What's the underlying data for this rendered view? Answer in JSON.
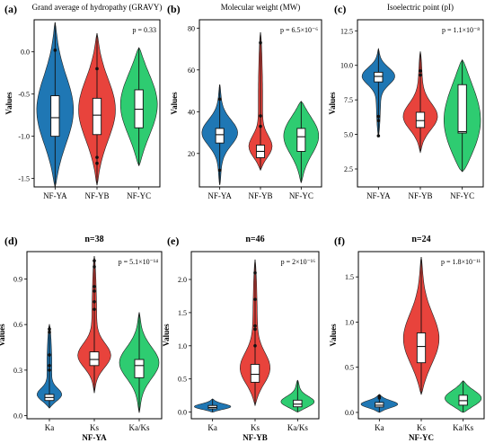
{
  "chart_data": [
    {
      "panel_label": "(a)",
      "type": "violin",
      "title": "Grand average of hydropathy (GRAVY)",
      "p_text": "p = 0.33",
      "ylabel": "Values",
      "xlabel": "",
      "categories": [
        "NF-YA",
        "NF-YB",
        "NF-YC"
      ],
      "ylim": [
        -1.6,
        0.38
      ],
      "yticks": [
        0.0,
        -0.5,
        -1.0,
        -1.5
      ],
      "ytick_labels": [
        "0.0",
        "-0.5",
        "-1.0",
        "-1.5"
      ],
      "colors": [
        "#1f77b4",
        "#e8433c",
        "#2ecc71"
      ],
      "violins": [
        {
          "min": -1.6,
          "max": 0.35,
          "q1": -1.0,
          "median": -0.78,
          "q3": -0.52,
          "points": [
            0.02
          ]
        },
        {
          "min": -1.58,
          "max": 0.22,
          "q1": -0.98,
          "median": -0.75,
          "q3": -0.55,
          "points": [
            -0.2,
            -1.25,
            -1.32
          ]
        },
        {
          "min": -1.35,
          "max": 0.05,
          "q1": -0.9,
          "median": -0.68,
          "q3": -0.45,
          "points": []
        }
      ]
    },
    {
      "panel_label": "(b)",
      "type": "violin",
      "title": "Molecular weight (MW)",
      "p_text": "p = 6.5×10⁻⁶",
      "ylabel": "Values",
      "xlabel": "",
      "categories": [
        "NF-YA",
        "NF-YB",
        "NF-YC"
      ],
      "ylim": [
        4,
        84
      ],
      "yticks": [
        20,
        40,
        60,
        80
      ],
      "ytick_labels": [
        "20",
        "40",
        "60",
        "80"
      ],
      "colors": [
        "#1f77b4",
        "#e8433c",
        "#2ecc71"
      ],
      "violins": [
        {
          "min": 5,
          "max": 53,
          "q1": 25,
          "median": 29,
          "q3": 32,
          "points": [
            46,
            12
          ]
        },
        {
          "min": 12,
          "max": 78,
          "q1": 18,
          "median": 21,
          "q3": 24,
          "points": [
            73,
            38,
            33
          ]
        },
        {
          "min": 6,
          "max": 45,
          "q1": 21,
          "median": 28,
          "q3": 32,
          "points": []
        }
      ]
    },
    {
      "panel_label": "(c)",
      "type": "violin",
      "title": "Isoelectric point (pI)",
      "p_text": "p = 1.1×10⁻⁸",
      "ylabel": "Values",
      "xlabel": "",
      "categories": [
        "NF-YA",
        "NF-YB",
        "NF-YC"
      ],
      "ylim": [
        1.2,
        13.3
      ],
      "yticks": [
        2.5,
        5.0,
        7.5,
        10.0,
        12.5
      ],
      "ytick_labels": [
        "2.5",
        "5.0",
        "7.5",
        "10.0",
        "12.5"
      ],
      "colors": [
        "#1f77b4",
        "#e8433c",
        "#2ecc71"
      ],
      "violins": [
        {
          "min": 4.9,
          "max": 11.2,
          "q1": 8.8,
          "median": 9.2,
          "q3": 9.5,
          "points": [
            6.3,
            6.0,
            4.9
          ]
        },
        {
          "min": 3.7,
          "max": 11.0,
          "q1": 5.5,
          "median": 6.0,
          "q3": 6.6,
          "points": [
            9.6,
            9.3
          ]
        },
        {
          "min": 2.3,
          "max": 10.4,
          "q1": 5.1,
          "median": 5.2,
          "q3": 8.6,
          "points": []
        }
      ]
    },
    {
      "panel_label": "(d)",
      "type": "violin",
      "title": "n=38",
      "p_text": "p = 5.1×10⁻¹⁴",
      "ylabel": "Values",
      "xlabel": "NF-YA",
      "categories": [
        "Ka",
        "Ks",
        "Ka/Ks"
      ],
      "ylim": [
        -0.02,
        1.08
      ],
      "yticks": [
        0.0,
        0.3,
        0.6,
        0.9
      ],
      "ytick_labels": [
        "0.0",
        "0.3",
        "0.6",
        "0.9"
      ],
      "colors": [
        "#1f77b4",
        "#e8433c",
        "#2ecc71"
      ],
      "violins": [
        {
          "min": 0.05,
          "max": 0.6,
          "q1": 0.1,
          "median": 0.12,
          "q3": 0.14,
          "points": [
            0.57,
            0.55,
            0.4,
            0.33,
            0.3
          ]
        },
        {
          "min": 0.15,
          "max": 1.05,
          "q1": 0.33,
          "median": 0.37,
          "q3": 0.42,
          "points": [
            1.02,
            0.98,
            0.85,
            0.82,
            0.75,
            0.7
          ]
        },
        {
          "min": 0.02,
          "max": 0.68,
          "q1": 0.25,
          "median": 0.33,
          "q3": 0.37,
          "points": []
        }
      ]
    },
    {
      "panel_label": "(e)",
      "type": "violin",
      "title": "n=46",
      "p_text": "p = 2×10⁻¹⁶",
      "ylabel": "Values",
      "xlabel": "NF-YB",
      "categories": [
        "Ka",
        "Ks",
        "Ka/Ks"
      ],
      "ylim": [
        -0.1,
        2.42
      ],
      "yticks": [
        0.0,
        0.5,
        1.0,
        1.5,
        2.0
      ],
      "ytick_labels": [
        "0.0",
        "0.5",
        "1.0",
        "1.5",
        "2.0"
      ],
      "colors": [
        "#1f77b4",
        "#e8433c",
        "#2ecc71"
      ],
      "violins": [
        {
          "min": 0.0,
          "max": 0.2,
          "q1": 0.05,
          "median": 0.07,
          "q3": 0.1,
          "points": []
        },
        {
          "min": 0.1,
          "max": 2.3,
          "q1": 0.45,
          "median": 0.57,
          "q3": 0.72,
          "points": [
            2.1,
            1.7,
            1.3,
            1.25,
            1.0
          ]
        },
        {
          "min": 0.0,
          "max": 0.48,
          "q1": 0.08,
          "median": 0.12,
          "q3": 0.18,
          "points": []
        }
      ]
    },
    {
      "panel_label": "(f)",
      "type": "violin",
      "title": "n=24",
      "p_text": "p = 1.8×10⁻¹¹",
      "ylabel": "Values",
      "xlabel": "NF-YC",
      "categories": [
        "Ka",
        "Ks",
        "Ka/Ks"
      ],
      "ylim": [
        -0.07,
        1.78
      ],
      "yticks": [
        0.0,
        0.5,
        1.0,
        1.5
      ],
      "ytick_labels": [
        "0.0",
        "0.5",
        "1.0",
        "1.5"
      ],
      "colors": [
        "#1f77b4",
        "#e8433c",
        "#2ecc71"
      ],
      "violins": [
        {
          "min": 0.0,
          "max": 0.2,
          "q1": 0.06,
          "median": 0.08,
          "q3": 0.11,
          "points": [
            0.18,
            0.16
          ]
        },
        {
          "min": 0.2,
          "max": 1.72,
          "q1": 0.55,
          "median": 0.73,
          "q3": 0.88,
          "points": []
        },
        {
          "min": 0.0,
          "max": 0.35,
          "q1": 0.08,
          "median": 0.13,
          "q3": 0.19,
          "points": []
        }
      ]
    }
  ]
}
